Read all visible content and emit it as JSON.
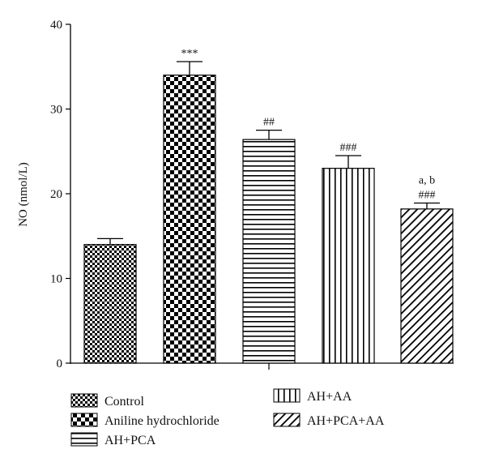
{
  "chart_data": {
    "type": "bar",
    "categories": [
      "Control",
      "Aniline hydrochloride",
      "AH+PCA",
      "AH+AA",
      "AH+PCA+AA"
    ],
    "values": [
      14.0,
      34.0,
      26.4,
      23.0,
      18.2
    ],
    "error": [
      0.7,
      1.6,
      1.1,
      1.5,
      0.7
    ],
    "annotations": [
      "",
      "***",
      "##",
      "###",
      "###"
    ],
    "annotations_extra": [
      "",
      "",
      "",
      "",
      "a, b"
    ],
    "patterns": [
      "checker-small",
      "checker-large",
      "horizontal-lines",
      "vertical-lines",
      "diagonal-lines"
    ],
    "ylabel": "NO (nmol/L)",
    "xlabel": "",
    "ylim": [
      0,
      40
    ],
    "yticks": [
      0,
      10,
      20,
      30,
      40
    ],
    "grid": false,
    "legend": {
      "placement": "bottom",
      "items": [
        "Control",
        "Aniline hydrochloride",
        "AH+PCA",
        "AH+AA",
        "AH+PCA+AA"
      ]
    },
    "colors": {
      "bar_fill": "#000000",
      "background": "#ffffff"
    }
  }
}
